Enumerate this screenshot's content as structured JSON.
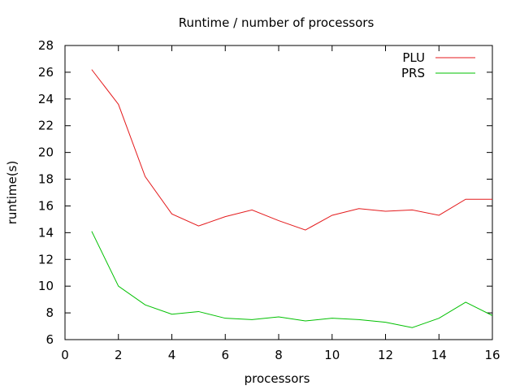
{
  "chart_data": {
    "type": "line",
    "title": "Runtime / number of processors",
    "xlabel": "processors",
    "ylabel": "runtime(s)",
    "xlim": [
      0,
      16
    ],
    "ylim": [
      6,
      28
    ],
    "xticks": [
      "0",
      "2",
      "4",
      "6",
      "8",
      "10",
      "12",
      "14",
      "16"
    ],
    "yticks": [
      "6",
      "8",
      "10",
      "12",
      "14",
      "16",
      "18",
      "20",
      "22",
      "24",
      "26",
      "28"
    ],
    "grid": false,
    "legend_position": "top-right",
    "x": [
      1,
      2,
      3,
      4,
      5,
      6,
      7,
      8,
      9,
      10,
      11,
      12,
      13,
      14,
      15,
      16
    ],
    "series": [
      {
        "name": "PLU",
        "color": "#e41a1c",
        "values": [
          26.2,
          23.6,
          18.2,
          15.4,
          14.5,
          15.2,
          15.7,
          14.9,
          14.2,
          15.3,
          15.8,
          15.6,
          15.7,
          15.3,
          16.5,
          16.5
        ]
      },
      {
        "name": "PRS",
        "color": "#00c000",
        "values": [
          14.1,
          10.0,
          8.6,
          7.9,
          8.1,
          7.6,
          7.5,
          7.7,
          7.4,
          7.6,
          7.5,
          7.3,
          6.9,
          7.6,
          8.8,
          7.8
        ]
      }
    ]
  }
}
